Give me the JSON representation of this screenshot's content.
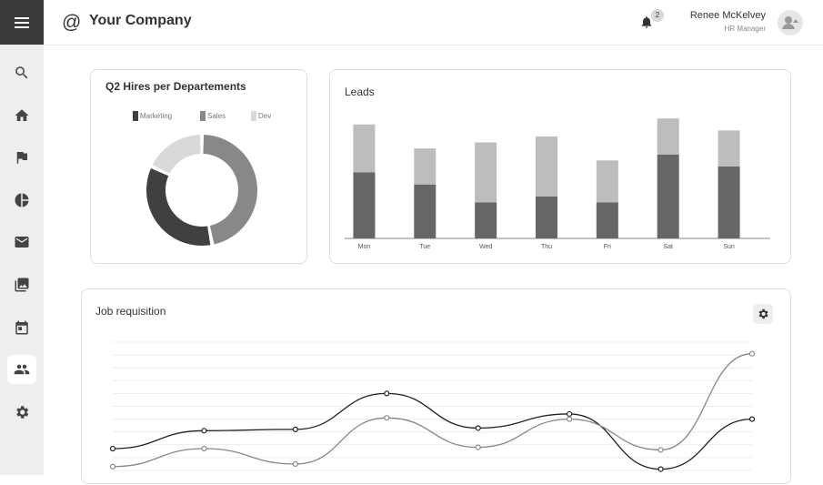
{
  "header": {
    "logo_glyph": "@",
    "company": "Your Company",
    "notifications_count": "2",
    "user_name": "Renee McKelvey",
    "user_role": "HR Manager"
  },
  "sidebar": {
    "items": [
      {
        "name": "search-icon",
        "active": false
      },
      {
        "name": "home-icon",
        "active": false
      },
      {
        "name": "flag-icon",
        "active": false
      },
      {
        "name": "pie-chart-icon",
        "active": false
      },
      {
        "name": "mail-icon",
        "active": false
      },
      {
        "name": "image-icon",
        "active": false
      },
      {
        "name": "calendar-icon",
        "active": false
      },
      {
        "name": "people-icon",
        "active": true
      },
      {
        "name": "settings-icon",
        "active": false
      }
    ]
  },
  "colors": {
    "dark": "#404040",
    "mid": "#888888",
    "light": "#d9d9d9",
    "bar_bottom": "#666666",
    "bar_top": "#bdbdbd"
  },
  "chart_data": [
    {
      "type": "pie",
      "title": "Q2 Hires per Departements",
      "donut": true,
      "legend_position": "top",
      "slices": [
        {
          "label": "Marketing",
          "value": 35,
          "color": "#404040"
        },
        {
          "label": "Sales",
          "value": 47,
          "color": "#888888"
        },
        {
          "label": "Dev",
          "value": 18,
          "color": "#d9d9d9"
        }
      ]
    },
    {
      "type": "bar",
      "stacked": true,
      "title": "Leads",
      "categories": [
        "Mon",
        "Tue",
        "Wed",
        "Thu",
        "Fri",
        "Sat",
        "Sun"
      ],
      "series": [
        {
          "values": [
            55,
            45,
            30,
            35,
            30,
            70,
            60
          ],
          "color": "#666666"
        },
        {
          "values": [
            40,
            30,
            50,
            50,
            35,
            30,
            30
          ],
          "color": "#bdbdbd"
        }
      ],
      "ylim": [
        0,
        110
      ]
    },
    {
      "type": "line",
      "title": "Job requisition",
      "smooth": true,
      "grid": true,
      "x": [
        0,
        1,
        2,
        3,
        4,
        5,
        6,
        7
      ],
      "series": [
        {
          "values": [
            17,
            31,
            32,
            60,
            33,
            44,
            1,
            40
          ],
          "color": "#222222"
        },
        {
          "values": [
            3,
            17,
            5,
            41,
            18,
            40,
            16,
            91
          ],
          "color": "#888888"
        }
      ],
      "ylim": [
        0,
        100
      ]
    }
  ]
}
